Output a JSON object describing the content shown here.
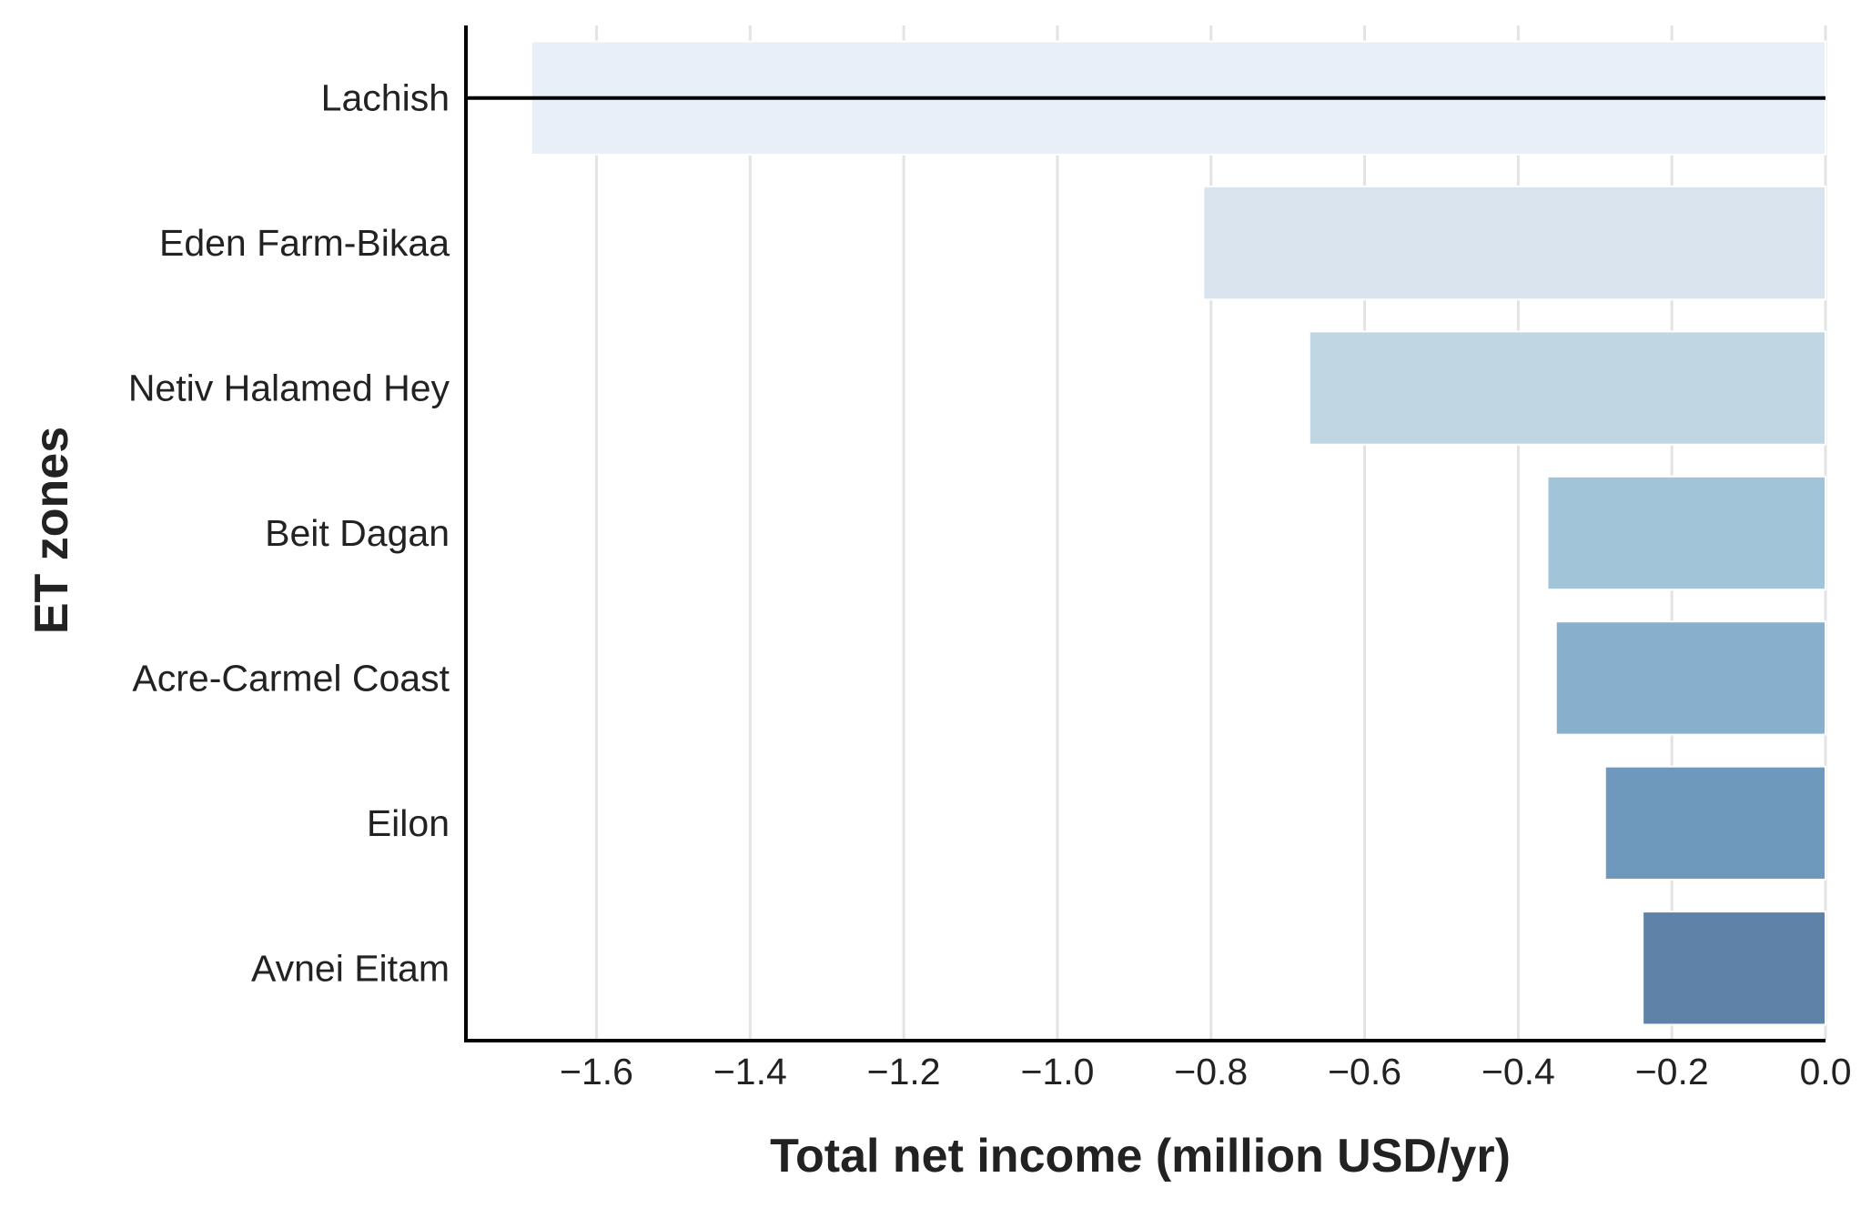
{
  "chart_data": {
    "type": "bar",
    "orientation": "horizontal",
    "categories": [
      "Lachish",
      "Eden Farm-Bikaa",
      "Netiv Halamed Hey",
      "Beit Dagan",
      "Acre-Carmel Coast",
      "Eilon",
      "Avnei Eitam"
    ],
    "values": [
      -1.685,
      -0.81,
      -0.672,
      -0.362,
      -0.351,
      -0.287,
      -0.238
    ],
    "xlabel": "Total net income (million USD/yr)",
    "ylabel": "ET zones",
    "xlim": [
      -1.77,
      0.0
    ],
    "xticks": [
      -1.6,
      -1.4,
      -1.2,
      -1.0,
      -0.8,
      -0.6,
      -0.4,
      -0.2,
      0.0
    ],
    "xtick_labels": [
      "−1.6",
      "−1.4",
      "−1.2",
      "−1.0",
      "−0.8",
      "−0.6",
      "−0.4",
      "−0.2",
      "0.0"
    ],
    "grid": "vertical",
    "highlight_line_category": "Lachish",
    "colors": [
      "#e8eff8",
      "#dae4ee",
      "#c0d6e3",
      "#a1c4d8",
      "#88afcb",
      "#6e99bd",
      "#5f82a9"
    ]
  }
}
